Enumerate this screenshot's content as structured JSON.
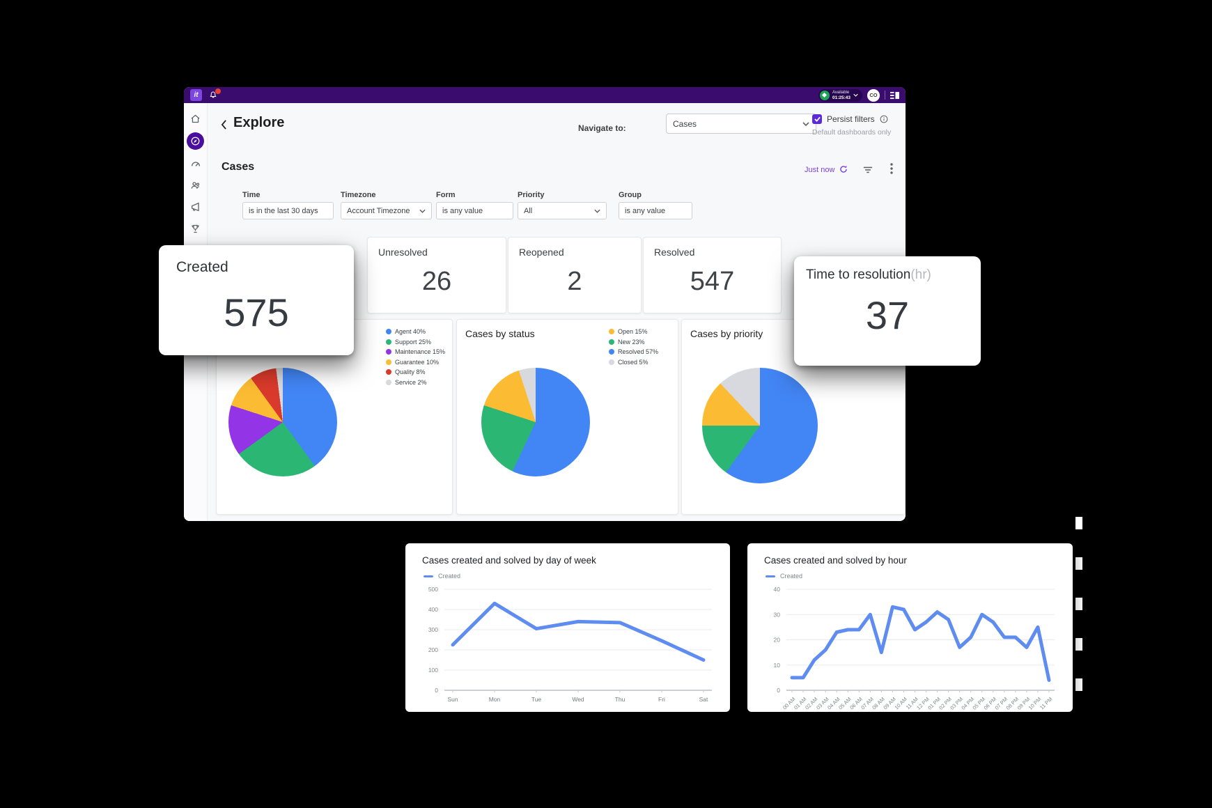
{
  "topbar": {
    "logo_text": "it",
    "status_label": "Available",
    "status_timer": "01:25:43",
    "avatar": "CO"
  },
  "header": {
    "title": "Explore",
    "navigate_label": "Navigate to:",
    "navigate_value": "Cases",
    "persist_label": "Persist filters",
    "persist_sub": "Default dashboards only"
  },
  "section": {
    "title": "Cases",
    "updated": "Just now"
  },
  "filters": [
    {
      "label": "Time",
      "value": "is in the last 30 days"
    },
    {
      "label": "Timezone",
      "value": "Account Timezone"
    },
    {
      "label": "Form",
      "value": "is any value"
    },
    {
      "label": "Priority",
      "value": "All"
    },
    {
      "label": "Group",
      "value": "is any value"
    }
  ],
  "kpis": [
    {
      "label": "Unresolved",
      "value": "26"
    },
    {
      "label": "Reopened",
      "value": "2"
    },
    {
      "label": "Resolved",
      "value": "547"
    }
  ],
  "floating_kpis": {
    "created": {
      "label": "Created",
      "value": "575"
    },
    "ttr": {
      "label": "Time to resolution",
      "suffix": "(hr)",
      "value": "37"
    }
  },
  "colors": {
    "accent": "#5c2bd6",
    "topbar": "#3a0c6e",
    "blue": "#4285f4",
    "green": "#2bb673",
    "purple": "#9334e6",
    "yellow": "#fbbc33",
    "red": "#d93a2b",
    "gray": "#d7d9de",
    "line": "#5e8cf0"
  },
  "chart_data": [
    {
      "type": "pie",
      "legend": [
        {
          "label": "Agent 40%",
          "color": "#4285f4"
        },
        {
          "label": "Support 25%",
          "color": "#2bb673"
        },
        {
          "label": "Maintenance 15%",
          "color": "#9334e6"
        },
        {
          "label": "Guarantee 10%",
          "color": "#fbbc33"
        },
        {
          "label": "Quality 8%",
          "color": "#d93a2b"
        },
        {
          "label": "Service 2%",
          "color": "#d7d9de"
        }
      ],
      "slices": [
        {
          "value": 40,
          "color": "#4285f4"
        },
        {
          "value": 25,
          "color": "#2bb673"
        },
        {
          "value": 15,
          "color": "#9334e6"
        },
        {
          "value": 10,
          "color": "#fbbc33"
        },
        {
          "value": 8,
          "color": "#d93a2b"
        },
        {
          "value": 2,
          "color": "#d7d9de"
        }
      ],
      "legend_position": "right"
    },
    {
      "type": "pie",
      "title": "Cases by status",
      "legend": [
        {
          "label": "Open 15%",
          "color": "#fbbc33"
        },
        {
          "label": "New 23%",
          "color": "#2bb673"
        },
        {
          "label": "Resolved 57%",
          "color": "#4285f4"
        },
        {
          "label": "Closed 5%",
          "color": "#d7d9de"
        }
      ],
      "slices": [
        {
          "value": 57,
          "color": "#4285f4"
        },
        {
          "value": 23,
          "color": "#2bb673"
        },
        {
          "value": 15,
          "color": "#fbbc33"
        },
        {
          "value": 5,
          "color": "#d7d9de"
        }
      ],
      "legend_position": "right"
    },
    {
      "type": "pie",
      "title": "Cases by priority",
      "legend": [],
      "slices": [
        {
          "value": 60,
          "color": "#4285f4"
        },
        {
          "value": 15,
          "color": "#2bb673"
        },
        {
          "value": 13,
          "color": "#fbbc33"
        },
        {
          "value": 12,
          "color": "#d7d9de"
        }
      ],
      "legend_position": "hidden"
    },
    {
      "type": "line",
      "title": "Cases created and solved by day of week",
      "legend": [
        "Created"
      ],
      "categories": [
        "Sun",
        "Mon",
        "Tue",
        "Wed",
        "Thu",
        "Fri",
        "Sat"
      ],
      "series": [
        {
          "name": "Created",
          "values": [
            225,
            430,
            305,
            340,
            335,
            245,
            150
          ]
        }
      ],
      "ylim": [
        0,
        500
      ],
      "ytick": 100,
      "x_label_rotation": 0,
      "grid": true,
      "color": "#5e8cf0"
    },
    {
      "type": "line",
      "title": "Cases created and solved by hour",
      "legend": [
        "Created"
      ],
      "categories": [
        "00 AM",
        "01 AM",
        "02 AM",
        "03 AM",
        "04 AM",
        "05 AM",
        "06 AM",
        "07 AM",
        "08 AM",
        "09 AM",
        "10 AM",
        "11 AM",
        "12 PM",
        "01 PM",
        "02 PM",
        "03 PM",
        "04 PM",
        "05 PM",
        "06 PM",
        "07 PM",
        "08 PM",
        "09 PM",
        "10 PM",
        "11 PM"
      ],
      "series": [
        {
          "name": "Created",
          "values": [
            5,
            5,
            12,
            16,
            23,
            24,
            24,
            30,
            15,
            33,
            32,
            24,
            27,
            31,
            28,
            17,
            21,
            30,
            27,
            21,
            21,
            17,
            25,
            4
          ]
        }
      ],
      "ylim": [
        0,
        40
      ],
      "ytick": 10,
      "x_label_rotation": -45,
      "grid": true,
      "color": "#5e8cf0"
    }
  ]
}
